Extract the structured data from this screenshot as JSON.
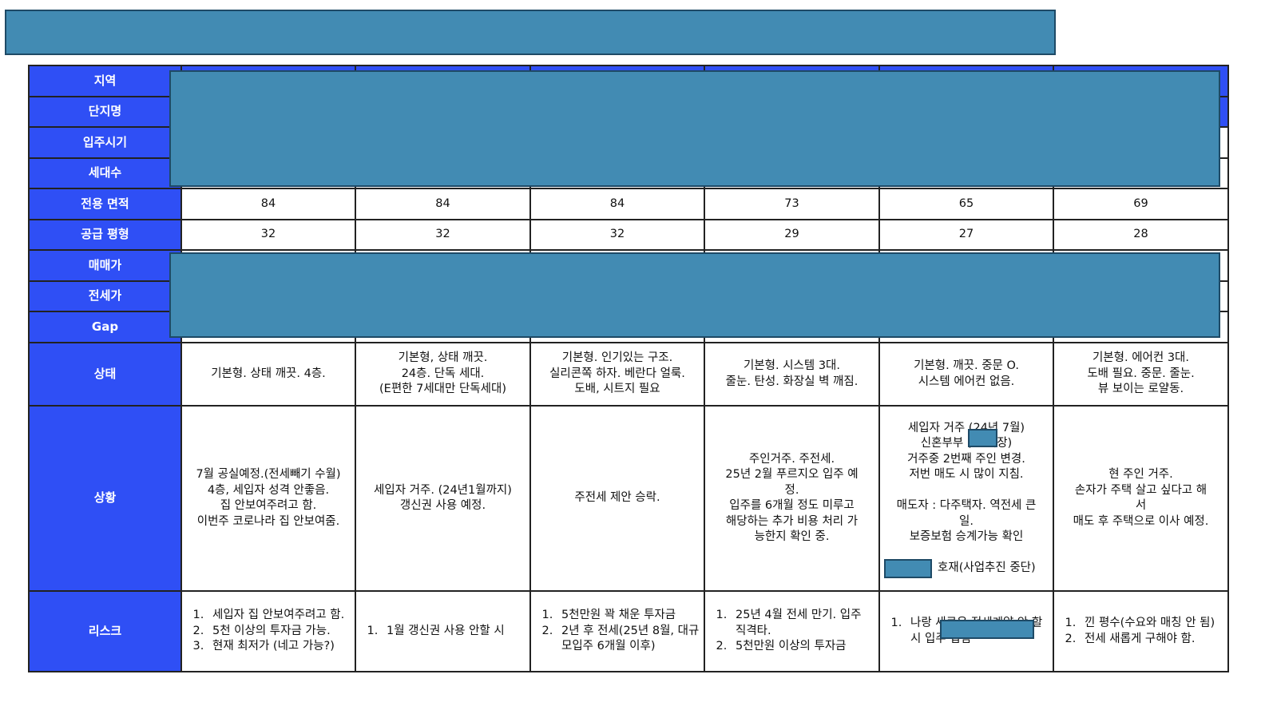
{
  "colors": {
    "header": "#2f4ff5",
    "redaction": "#428bb3"
  },
  "rows": {
    "region": "지역",
    "complex": "단지명",
    "move_in": "입주시기",
    "households": "세대수",
    "area": "전용 면적",
    "pyeong": "공급 평형",
    "sale_price": "매매가",
    "jeonse_price": "전세가",
    "gap": "Gap",
    "condition": "상태",
    "situation": "상황",
    "risk": "리스크"
  },
  "columns": [
    {
      "area": "84",
      "pyeong": "32",
      "condition": [
        "기본형. 상태 깨끗. 4층."
      ],
      "situation": [
        "7월 공실예정.(전세빼기 수월)",
        "4층, 세입자 성격 안좋음.",
        "집 안보여주려고 함.",
        "이번주 코로나라 집 안보여줌."
      ],
      "risk": [
        "세입자 집 안보여주려고 함.",
        "5천 이상의 투자금 가능.",
        "현재 최저가 (네고 가능?)"
      ]
    },
    {
      "area": "84",
      "pyeong": "32",
      "condition": [
        "기본형, 상태 깨끗.",
        "24층. 단독 세대.",
        "(E편한 7세대만 단독세대)"
      ],
      "situation": [
        "세입자 거주. (24년1월까지)",
        "갱신권 사용 예정."
      ],
      "risk": [
        "1월 갱신권 사용 안할 시"
      ]
    },
    {
      "area": "84",
      "pyeong": "32",
      "condition": [
        "기본형. 인기있는 구조.",
        "실리콘쪽 하자. 베란다 얼룩.",
        "도배, 시트지 필요"
      ],
      "situation": [
        "주전세 제안 승락."
      ],
      "risk": [
        "5천만원 꽉 채운 투자금",
        "2년 후 전세(25년 8월, 대규모입주 6개월 이후)"
      ]
    },
    {
      "area": "73",
      "pyeong": "29",
      "condition": [
        "기본형. 시스템 3대.",
        "줄눈. 탄성. 화장실 벽 깨짐."
      ],
      "situation": [
        "주인거주. 주전세.",
        "25년 2월 푸르지오 입주 예",
        "정.",
        "입주를 6개월 정도 미루고",
        "해당하는 추가 비용 처리 가",
        "능한지 확인 중."
      ],
      "risk": [
        "25년 4월 전세 만기. 입주 직격타.",
        "5천만원 이상의 투자금"
      ]
    },
    {
      "area": "65",
      "pyeong": "27",
      "condition": [
        "기본형. 깨끗. 중문 O.",
        "시스템 에어컨 없음."
      ],
      "situation": [
        "세입자 거주 (24년 7월)",
        "신혼부부 (    직장)",
        "거주중 2번째 주인 변경.",
        "저번 매도 시 많이 지침.",
        " ",
        "매도자 : 다주택자. 역전세 큰",
        "일.",
        "보증보험 승계가능 확인",
        " ",
        "           호재(사업추진 중단)"
      ],
      "risk": [
        "나랑 새로운 전세계약 안 할시                    입주 겹침"
      ]
    },
    {
      "area": "69",
      "pyeong": "28",
      "condition": [
        "기본형. 에어컨 3대.",
        "도배 필요. 중문. 줄눈.",
        "뷰 보이는 로얄동."
      ],
      "situation": [
        "현 주인 거주.",
        "손자가 주택 살고 싶다고 해",
        "서",
        "매도 후 주택으로 이사 예정."
      ],
      "risk": [
        "낀 평수(수요와 매칭 안 됨)",
        "전세 새롭게 구해야 함."
      ]
    }
  ]
}
